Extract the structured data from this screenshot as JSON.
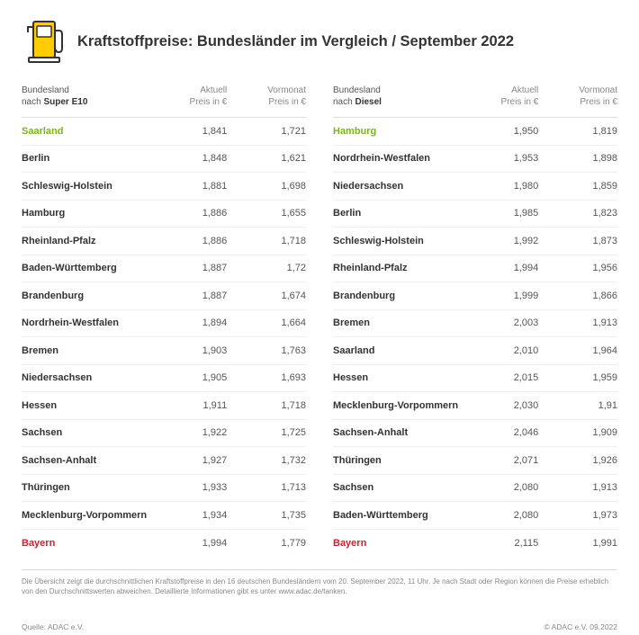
{
  "title": "Kraftstoffpreise: Bundesländer im Vergleich / September 2022",
  "colors": {
    "accent_yellow": "#ffcc00",
    "highlight_low": "#7ab51d",
    "highlight_high": "#c1272d",
    "text_primary": "#333333",
    "text_secondary": "#888888",
    "border": "#dddddd"
  },
  "left": {
    "header_line1": "Bundesland",
    "header_line2_prefix": "nach ",
    "header_line2_bold": "Super E10",
    "col_current_l1": "Aktuell",
    "col_current_l2": "Preis in €",
    "col_prev_l1": "Vormonat",
    "col_prev_l2": "Preis in €",
    "rows": [
      {
        "name": "Saarland",
        "cur": "1,841",
        "prev": "1,721",
        "hl": "low"
      },
      {
        "name": "Berlin",
        "cur": "1,848",
        "prev": "1,621"
      },
      {
        "name": "Schleswig-Holstein",
        "cur": "1,881",
        "prev": "1,698"
      },
      {
        "name": "Hamburg",
        "cur": "1,886",
        "prev": "1,655"
      },
      {
        "name": "Rheinland-Pfalz",
        "cur": "1,886",
        "prev": "1,718"
      },
      {
        "name": "Baden-Württemberg",
        "cur": "1,887",
        "prev": "1,72"
      },
      {
        "name": "Brandenburg",
        "cur": "1,887",
        "prev": "1,674"
      },
      {
        "name": "Nordrhein-Westfalen",
        "cur": "1,894",
        "prev": "1,664"
      },
      {
        "name": "Bremen",
        "cur": "1,903",
        "prev": "1,763"
      },
      {
        "name": "Niedersachsen",
        "cur": "1,905",
        "prev": "1,693"
      },
      {
        "name": "Hessen",
        "cur": "1,911",
        "prev": "1,718"
      },
      {
        "name": "Sachsen",
        "cur": "1,922",
        "prev": "1,725"
      },
      {
        "name": "Sachsen-Anhalt",
        "cur": "1,927",
        "prev": "1,732"
      },
      {
        "name": "Thüringen",
        "cur": "1,933",
        "prev": "1,713"
      },
      {
        "name": "Mecklenburg-Vorpommern",
        "cur": "1,934",
        "prev": "1,735"
      },
      {
        "name": "Bayern",
        "cur": "1,994",
        "prev": "1,779",
        "hl": "high"
      }
    ]
  },
  "right": {
    "header_line1": "Bundesland",
    "header_line2_prefix": "nach ",
    "header_line2_bold": "Diesel",
    "col_current_l1": "Aktuell",
    "col_current_l2": "Preis in €",
    "col_prev_l1": "Vormonat",
    "col_prev_l2": "Preis in €",
    "rows": [
      {
        "name": "Hamburg",
        "cur": "1,950",
        "prev": "1,819",
        "hl": "low"
      },
      {
        "name": "Nordrhein-Westfalen",
        "cur": "1,953",
        "prev": "1,898"
      },
      {
        "name": "Niedersachsen",
        "cur": "1,980",
        "prev": "1,859"
      },
      {
        "name": "Berlin",
        "cur": "1,985",
        "prev": "1,823"
      },
      {
        "name": "Schleswig-Holstein",
        "cur": "1,992",
        "prev": "1,873"
      },
      {
        "name": "Rheinland-Pfalz",
        "cur": "1,994",
        "prev": "1,956"
      },
      {
        "name": "Brandenburg",
        "cur": "1,999",
        "prev": "1,866"
      },
      {
        "name": "Bremen",
        "cur": "2,003",
        "prev": "1,913"
      },
      {
        "name": "Saarland",
        "cur": "2,010",
        "prev": "1,964"
      },
      {
        "name": "Hessen",
        "cur": "2,015",
        "prev": "1,959"
      },
      {
        "name": "Mecklenburg-Vorpommern",
        "cur": "2,030",
        "prev": "1,91"
      },
      {
        "name": "Sachsen-Anhalt",
        "cur": "2,046",
        "prev": "1,909"
      },
      {
        "name": "Thüringen",
        "cur": "2,071",
        "prev": "1,926"
      },
      {
        "name": "Sachsen",
        "cur": "2,080",
        "prev": "1,913"
      },
      {
        "name": "Baden-Württemberg",
        "cur": "2,080",
        "prev": "1,973"
      },
      {
        "name": "Bayern",
        "cur": "2,115",
        "prev": "1,991",
        "hl": "high"
      }
    ]
  },
  "footnote": "Die Übersicht zeigt die durchschnittlichen Kraftstoffpreise in den 16 deutschen Bundesländern vom 20. September 2022, 11 Uhr. Je nach Stadt oder Region können die Preise erheblich von den Durchschnittswerten abweichen. Detaillierte Informationen gibt es unter www.adac.de/tanken.",
  "source": "Quelle: ADAC e.V.",
  "copyright": "© ADAC e.V. 09.2022"
}
